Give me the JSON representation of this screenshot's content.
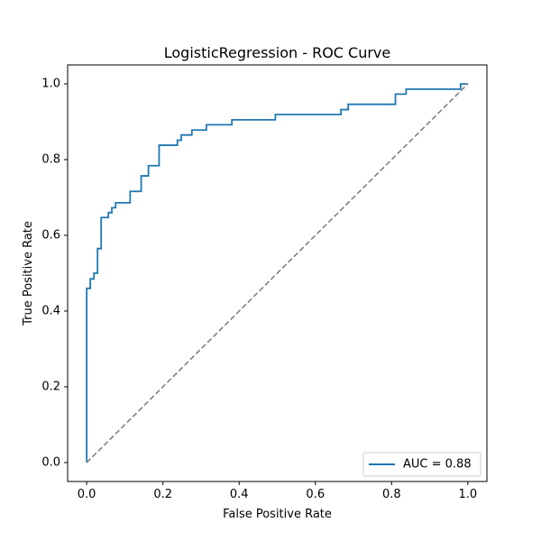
{
  "chart_data": {
    "type": "line",
    "title": "LogisticRegression - ROC Curve",
    "xlabel": "False Positive Rate",
    "ylabel": "True Positive Rate",
    "xlim": [
      -0.05,
      1.05
    ],
    "ylim": [
      -0.05,
      1.05
    ],
    "xticks": [
      0.0,
      0.2,
      0.4,
      0.6,
      0.8,
      1.0
    ],
    "yticks": [
      0.0,
      0.2,
      0.4,
      0.6,
      0.8,
      1.0
    ],
    "xtick_labels": [
      "0.0",
      "0.2",
      "0.4",
      "0.6",
      "0.8",
      "1.0"
    ],
    "ytick_labels": [
      "0.0",
      "0.2",
      "0.4",
      "0.6",
      "0.8",
      "1.0"
    ],
    "grid": false,
    "legend_position": "lower-right",
    "series": [
      {
        "name": "AUC = 0.88",
        "color": "#1f77b4",
        "style": "solid",
        "x": [
          0.0,
          0.0,
          0.0095,
          0.0095,
          0.019,
          0.019,
          0.0285,
          0.0285,
          0.038,
          0.038,
          0.057,
          0.057,
          0.066,
          0.066,
          0.076,
          0.076,
          0.114,
          0.114,
          0.143,
          0.143,
          0.162,
          0.162,
          0.19,
          0.19,
          0.238,
          0.238,
          0.248,
          0.248,
          0.276,
          0.276,
          0.314,
          0.314,
          0.381,
          0.381,
          0.495,
          0.495,
          0.667,
          0.667,
          0.686,
          0.686,
          0.81,
          0.81,
          0.838,
          0.838,
          0.981,
          0.981,
          1.0
        ],
        "y": [
          0.0,
          0.46,
          0.46,
          0.485,
          0.485,
          0.5,
          0.5,
          0.565,
          0.565,
          0.647,
          0.647,
          0.66,
          0.66,
          0.673,
          0.673,
          0.686,
          0.686,
          0.716,
          0.716,
          0.757,
          0.757,
          0.784,
          0.784,
          0.838,
          0.838,
          0.851,
          0.851,
          0.865,
          0.865,
          0.878,
          0.878,
          0.892,
          0.892,
          0.905,
          0.905,
          0.919,
          0.919,
          0.932,
          0.932,
          0.946,
          0.946,
          0.973,
          0.973,
          0.986,
          0.986,
          1.0,
          1.0
        ]
      },
      {
        "color": "#808080",
        "style": "dashed",
        "x": [
          0.0,
          1.0
        ],
        "y": [
          0.0,
          1.0
        ]
      }
    ],
    "legend": [
      {
        "label": "AUC = 0.88",
        "color": "#1f77b4"
      }
    ]
  }
}
